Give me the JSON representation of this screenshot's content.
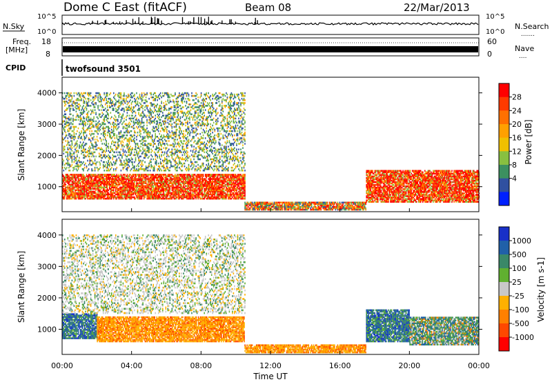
{
  "header": {
    "title": "Dome C East (fitACF)",
    "beam": "Beam 08",
    "date": "22/Mar/2013"
  },
  "top_panels": {
    "nsky_label": "N.Sky",
    "nsky_ticks": [
      "10^5",
      "10^0"
    ],
    "nsearch_label": "N.Search",
    "nsearch_ticks": [
      "10^5",
      "10^0"
    ],
    "freq_label_1": "Freq.",
    "freq_label_2": "[MHz]",
    "freq_ticks": [
      "18",
      "8"
    ],
    "nave_label": "Nave",
    "nave_ticks": [
      "60",
      "0"
    ],
    "cpid_label": "CPID",
    "cpid_value": "twofsound 3501"
  },
  "power_colorbar": {
    "label": "Power [dB]",
    "ticks": [
      "28",
      "24",
      "20",
      "16",
      "12",
      "8",
      "4"
    ],
    "colors": [
      "#ff0000",
      "#ff3a00",
      "#ff7000",
      "#ffa000",
      "#f0c000",
      "#88c040",
      "#3c9060",
      "#3050a0",
      "#0020ff"
    ]
  },
  "velocity_colorbar": {
    "label": "Velocity [m s-1]",
    "ticks": [
      "1000",
      "500",
      "100",
      "25",
      "-25",
      "-100",
      "-500",
      "-1000"
    ],
    "colors": [
      "#1830c8",
      "#2060a8",
      "#3a8868",
      "#60b030",
      "#c8c8c8",
      "#ffb000",
      "#ff8000",
      "#ff4800",
      "#ff0000"
    ]
  },
  "chart_data": [
    {
      "type": "heatmap",
      "name": "power",
      "ylabel": "Slant Range [km]",
      "ylim": [
        200,
        4500
      ],
      "y_ticks": [
        1000,
        2000,
        3000,
        4000
      ],
      "xlim": [
        0,
        24
      ],
      "x_ticks": [
        "00:00",
        "04:00",
        "08:00",
        "12:00",
        "16:00",
        "20:00",
        "00:00"
      ],
      "bands": [
        {
          "t0": 0,
          "t1": 10.5,
          "r0": 600,
          "r1": 1400,
          "level": "high"
        },
        {
          "t0": 10.5,
          "t1": 17.5,
          "r0": 250,
          "r1": 500,
          "level": "mid"
        },
        {
          "t0": 17.5,
          "t1": 24,
          "r0": 500,
          "r1": 1500,
          "level": "high"
        },
        {
          "t0": 0,
          "t1": 10.5,
          "r0": 1500,
          "r1": 4000,
          "level": "low"
        }
      ]
    },
    {
      "type": "heatmap",
      "name": "velocity",
      "ylabel": "Slant Range [km]",
      "ylim": [
        200,
        4500
      ],
      "y_ticks": [
        1000,
        2000,
        3000,
        4000
      ],
      "xlim": [
        0,
        24
      ],
      "x_ticks": [
        "00:00",
        "04:00",
        "08:00",
        "12:00",
        "16:00",
        "20:00",
        "00:00"
      ],
      "xlabel": "Time UT",
      "bands": [
        {
          "t0": 0,
          "t1": 2,
          "r0": 700,
          "r1": 1500,
          "level": "pos"
        },
        {
          "t0": 2,
          "t1": 10.5,
          "r0": 600,
          "r1": 1400,
          "level": "neg"
        },
        {
          "t0": 10.5,
          "t1": 17.5,
          "r0": 250,
          "r1": 500,
          "level": "neg"
        },
        {
          "t0": 17.5,
          "t1": 20,
          "r0": 600,
          "r1": 1600,
          "level": "pos"
        },
        {
          "t0": 20,
          "t1": 24,
          "r0": 500,
          "r1": 1400,
          "level": "mix"
        },
        {
          "t0": 0,
          "t1": 10.5,
          "r0": 1500,
          "r1": 4000,
          "level": "grey"
        }
      ]
    }
  ]
}
